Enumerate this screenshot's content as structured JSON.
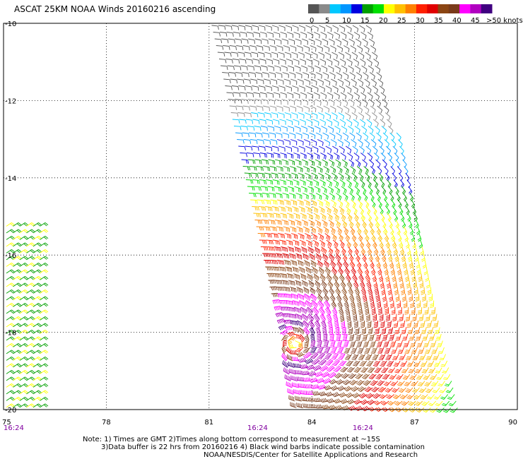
{
  "title": "ASCAT 25KM NOAA Winds 20160216 ascending",
  "colorbar": {
    "labels": [
      "0",
      "5",
      "10",
      "15",
      "20",
      "25",
      "30",
      "35",
      "40",
      "45",
      ">50 knots"
    ],
    "colors": [
      "#555555",
      "#8a8a8a",
      "#00c8ff",
      "#0096ff",
      "#0000e0",
      "#00a000",
      "#00e000",
      "#ffff00",
      "#ffc000",
      "#ff8000",
      "#ff2000",
      "#e00000",
      "#8b4513",
      "#7a3a1a",
      "#ff00ff",
      "#b000c0",
      "#400080"
    ]
  },
  "lon_ticks": [
    "75",
    "78",
    "81",
    "84",
    "87",
    "90"
  ],
  "lat_ticks": [
    "-10",
    "-12",
    "-14",
    "-16",
    "-18",
    "-20"
  ],
  "time_labels": [
    "16:24",
    "16:24",
    "16:24"
  ],
  "notes": [
    "Note: 1) Times are GMT 2)Times along bottom correspond to measurement at ~15S",
    "3)Data buffer is 22 hrs from 20160216 4) Black wind barbs indicate possible contamination",
    "NOAA/NESDIS/Center for Satellite Applications and Research"
  ],
  "map_extent": {
    "lon": [
      75,
      90
    ],
    "lat": [
      -20,
      -10
    ]
  },
  "swaths": [
    {
      "name": "main-swath",
      "lon_left_top": 81.0,
      "lon_right_top": 85.8,
      "lon_left_bottom": 83.5,
      "lon_right_bottom": 88.4,
      "lat_top": -10,
      "lat_bottom": -20
    },
    {
      "name": "west-swath",
      "lon_left": 75.0,
      "lon_right": 76.1,
      "lat_top": -15.2,
      "lat_bottom": -20
    }
  ],
  "cyclone_center": {
    "lon": 83.5,
    "lat": -18.3
  }
}
